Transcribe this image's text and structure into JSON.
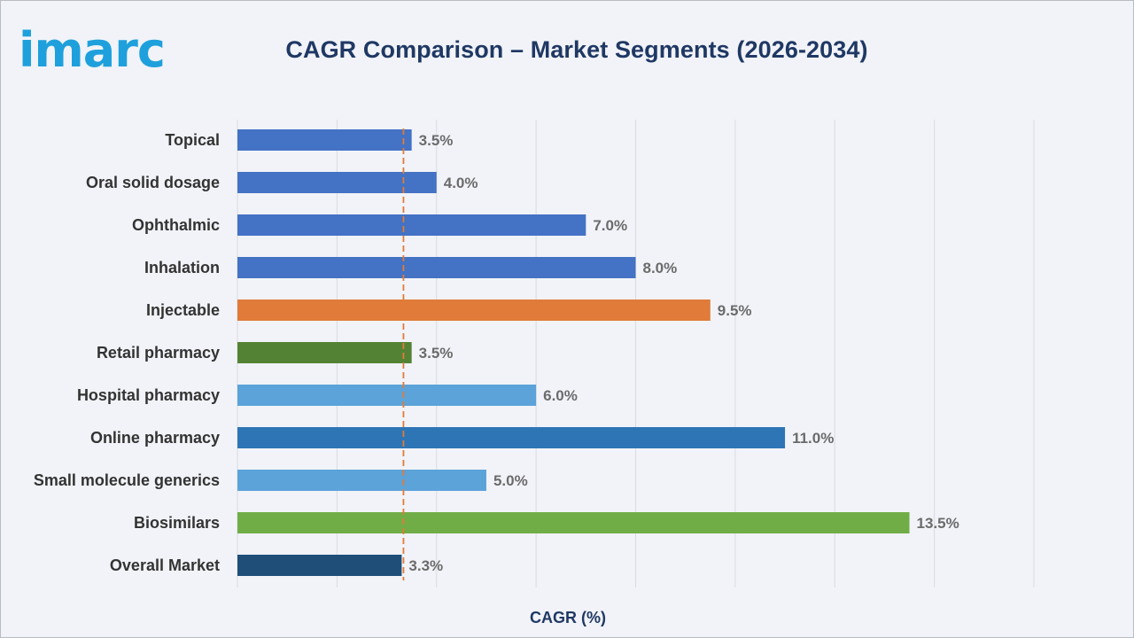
{
  "brand": {
    "logo_text": "imarc",
    "color": "#1ea0dc"
  },
  "chart_data": {
    "type": "bar",
    "orientation": "horizontal",
    "title": "CAGR Comparison – Market Segments (2026-2034)",
    "xlabel": "CAGR (%)",
    "ylabel": "",
    "xlim": [
      0,
      16
    ],
    "grid": "vertical",
    "categories": [
      "Topical",
      "Oral solid dosage",
      "Ophthalmic",
      "Inhalation",
      "Injectable",
      "Retail pharmacy",
      "Hospital pharmacy",
      "Online pharmacy",
      "Small molecule generics",
      "Biosimilars",
      "Overall Market"
    ],
    "values": [
      3.5,
      4.0,
      7.0,
      8.0,
      9.5,
      3.5,
      6.0,
      11.0,
      5.0,
      13.5,
      3.3
    ],
    "value_labels": [
      "3.5%",
      "4.0%",
      "7.0%",
      "8.0%",
      "9.5%",
      "3.5%",
      "6.0%",
      "11.0%",
      "5.0%",
      "13.5%",
      "3.3%"
    ],
    "colors": [
      "#4472c4",
      "#4472c4",
      "#4472c4",
      "#4472c4",
      "#e07b39",
      "#548235",
      "#5ba3d9",
      "#2e75b6",
      "#5ba3d9",
      "#70ad47",
      "#1f4e79"
    ],
    "reference_line": {
      "value": 3.3,
      "style": "dashed",
      "color": "#e07b39"
    }
  }
}
